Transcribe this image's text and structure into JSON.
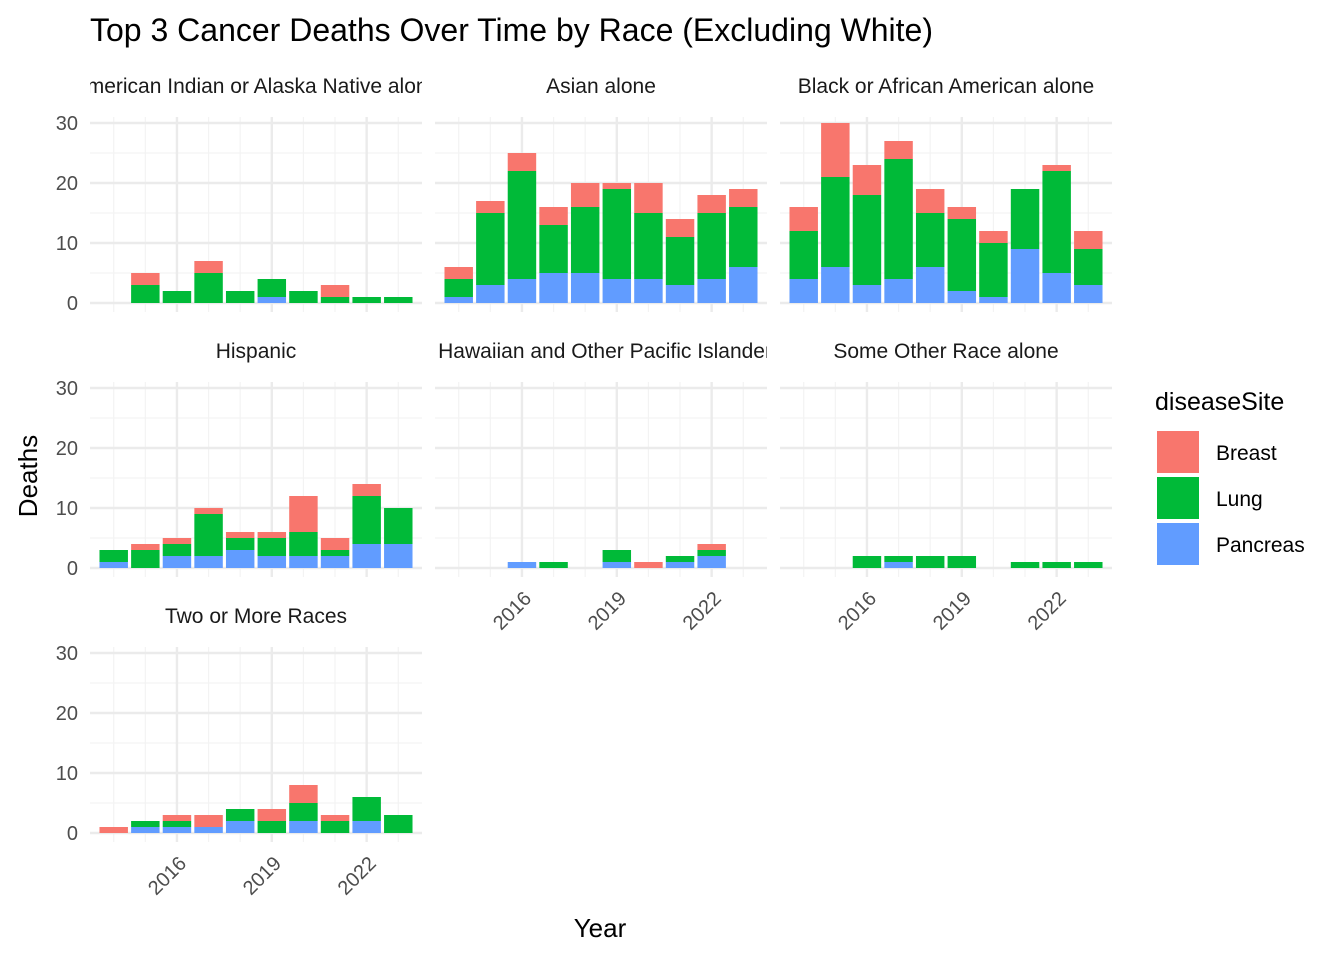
{
  "chart_data": {
    "type": "bar",
    "stacked": true,
    "title": "Top 3 Cancer Deaths Over Time by Race (Excluding White)",
    "xlabel": "Year",
    "ylabel": "Deaths",
    "x": [
      2014,
      2015,
      2016,
      2017,
      2018,
      2019,
      2020,
      2021,
      2022,
      2023
    ],
    "x_ticks": [
      "2016",
      "2019",
      "2022"
    ],
    "y_ticks": [
      "0",
      "10",
      "20",
      "30"
    ],
    "ylim": [
      0,
      31
    ],
    "grid": true,
    "legend": {
      "title": "diseaseSite",
      "placement": "right",
      "entries": [
        "Breast",
        "Lung",
        "Pancreas"
      ]
    },
    "series_colors": {
      "Breast": "#F8766D",
      "Lung": "#00BA38",
      "Pancreas": "#619CFF"
    },
    "facets": [
      {
        "label": "American Indian or Alaska Native alone",
        "series": [
          {
            "name": "Pancreas",
            "values": [
              0,
              0,
              0,
              0,
              0,
              1,
              0,
              0,
              0,
              0
            ]
          },
          {
            "name": "Lung",
            "values": [
              0,
              3,
              2,
              5,
              2,
              3,
              2,
              1,
              1,
              1
            ]
          },
          {
            "name": "Breast",
            "values": [
              0,
              2,
              0,
              2,
              0,
              0,
              0,
              2,
              0,
              0
            ]
          }
        ]
      },
      {
        "label": "Asian alone",
        "series": [
          {
            "name": "Pancreas",
            "values": [
              1,
              3,
              4,
              5,
              5,
              4,
              4,
              3,
              4,
              6
            ]
          },
          {
            "name": "Lung",
            "values": [
              3,
              12,
              18,
              8,
              11,
              15,
              11,
              8,
              11,
              10
            ]
          },
          {
            "name": "Breast",
            "values": [
              2,
              2,
              3,
              3,
              4,
              1,
              5,
              3,
              3,
              3
            ]
          }
        ]
      },
      {
        "label": "Black or African American alone",
        "series": [
          {
            "name": "Pancreas",
            "values": [
              4,
              6,
              3,
              4,
              6,
              2,
              1,
              9,
              5,
              3
            ]
          },
          {
            "name": "Lung",
            "values": [
              8,
              15,
              15,
              20,
              9,
              12,
              9,
              10,
              17,
              6
            ]
          },
          {
            "name": "Breast",
            "values": [
              4,
              9,
              5,
              3,
              4,
              2,
              2,
              0,
              1,
              3
            ]
          }
        ]
      },
      {
        "label": "Hispanic",
        "series": [
          {
            "name": "Pancreas",
            "values": [
              1,
              0,
              2,
              2,
              3,
              2,
              2,
              2,
              4,
              4
            ]
          },
          {
            "name": "Lung",
            "values": [
              2,
              3,
              2,
              7,
              2,
              3,
              4,
              1,
              8,
              6
            ]
          },
          {
            "name": "Breast",
            "values": [
              0,
              1,
              1,
              1,
              1,
              1,
              6,
              2,
              2,
              0
            ]
          }
        ]
      },
      {
        "label": "Native Hawaiian and Other Pacific Islander alone",
        "series": [
          {
            "name": "Pancreas",
            "values": [
              0,
              0,
              1,
              0,
              0,
              1,
              0,
              1,
              2,
              0
            ]
          },
          {
            "name": "Lung",
            "values": [
              0,
              0,
              0,
              1,
              0,
              2,
              0,
              1,
              1,
              0
            ]
          },
          {
            "name": "Breast",
            "values": [
              0,
              0,
              0,
              0,
              0,
              0,
              1,
              0,
              1,
              0
            ]
          }
        ]
      },
      {
        "label": "Some Other Race alone",
        "series": [
          {
            "name": "Pancreas",
            "values": [
              0,
              0,
              0,
              1,
              0,
              0,
              0,
              0,
              0,
              0
            ]
          },
          {
            "name": "Lung",
            "values": [
              0,
              0,
              2,
              1,
              2,
              2,
              0,
              1,
              1,
              1
            ]
          },
          {
            "name": "Breast",
            "values": [
              0,
              0,
              0,
              0,
              0,
              0,
              0,
              0,
              0,
              0
            ]
          }
        ]
      },
      {
        "label": "Two or More Races",
        "series": [
          {
            "name": "Pancreas",
            "values": [
              0,
              1,
              1,
              1,
              2,
              0,
              2,
              0,
              2,
              0
            ]
          },
          {
            "name": "Lung",
            "values": [
              0,
              1,
              1,
              0,
              2,
              2,
              3,
              2,
              4,
              3
            ]
          },
          {
            "name": "Breast",
            "values": [
              1,
              0,
              1,
              2,
              0,
              2,
              3,
              1,
              0,
              0
            ]
          }
        ]
      }
    ]
  }
}
